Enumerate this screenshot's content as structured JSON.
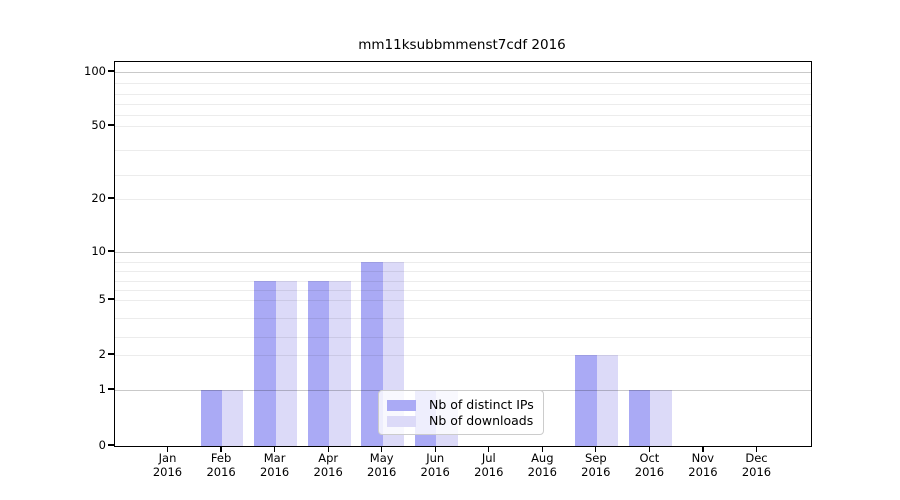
{
  "figure": {
    "title": "mm11ksubbmmenst7cdf 2016"
  },
  "chart_data": {
    "type": "bar",
    "title": "mm11ksubbmmenst7cdf 2016",
    "year": "2016",
    "months": [
      "Jan",
      "Feb",
      "Mar",
      "Apr",
      "May",
      "Jun",
      "Jul",
      "Aug",
      "Sep",
      "Oct",
      "Nov",
      "Dec"
    ],
    "series": [
      {
        "name": "Nb of distinct IPs",
        "color": "#aaaaf5",
        "values": [
          0,
          1,
          7,
          7,
          9,
          1,
          0,
          0,
          2,
          1,
          0,
          0
        ]
      },
      {
        "name": "Nb of downloads",
        "color": "#dcdaf8",
        "values": [
          0,
          1,
          7,
          7,
          9,
          1,
          0,
          0,
          2,
          1,
          0,
          0
        ]
      }
    ],
    "yticks": [
      0,
      1,
      2,
      5,
      10,
      20,
      50,
      100
    ],
    "strong_gridline_values": [
      1,
      10,
      100
    ],
    "minor_gridline_values": [
      3,
      4,
      6,
      7,
      8,
      9,
      30,
      40,
      60,
      70,
      80,
      90
    ],
    "ylim": [
      0,
      100
    ],
    "yscale": "log-like with ticks 0,1,2,5,10,20,50,100",
    "grid": true,
    "legend_position": "lower center"
  },
  "legend": {
    "entries": [
      {
        "label": "Nb of distinct IPs"
      },
      {
        "label": "Nb of downloads"
      }
    ]
  }
}
